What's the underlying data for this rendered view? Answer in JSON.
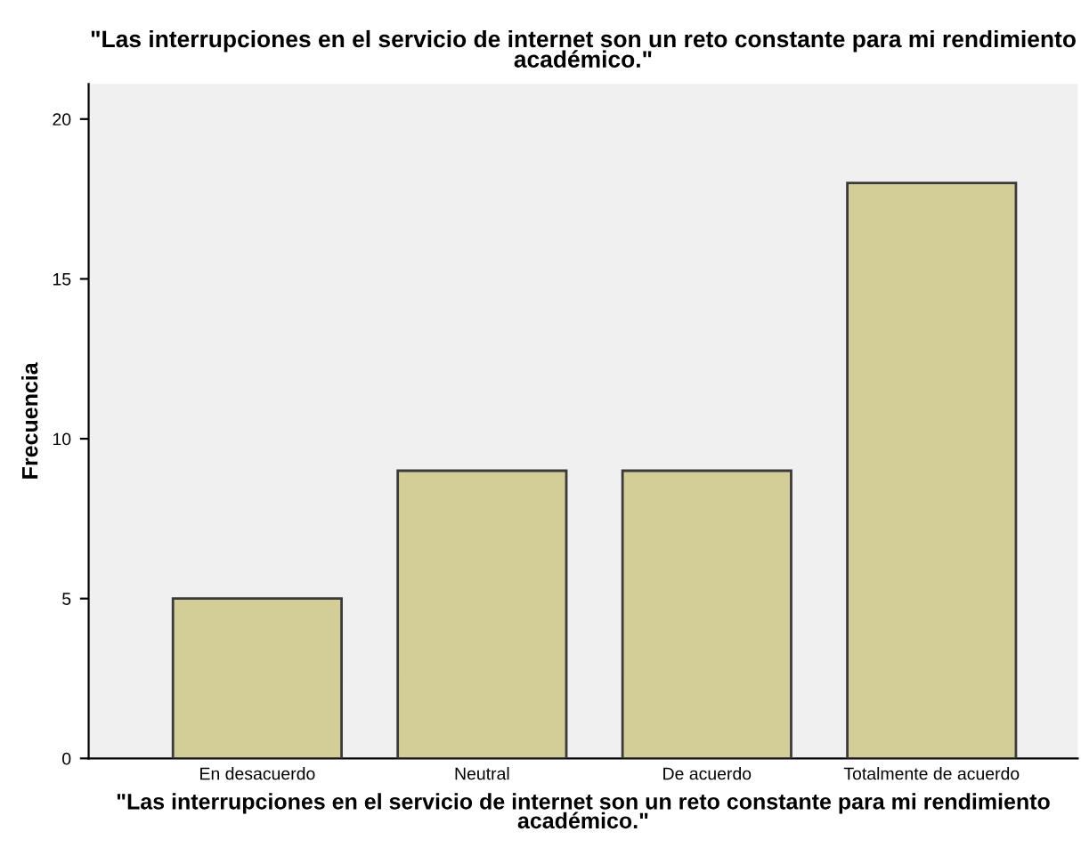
{
  "chart_data": {
    "type": "bar",
    "title": "\"Las interrupciones en el servicio de internet son un reto constante para mi rendimiento académico.\"",
    "xlabel": "\"Las interrupciones en el servicio de internet son un reto constante para mi rendimiento académico.\"",
    "ylabel": "Frecuencia",
    "categories": [
      "En desacuerdo",
      "Neutral",
      "De acuerdo",
      "Totalmente de acuerdo"
    ],
    "values": [
      5,
      9,
      9,
      18
    ],
    "color": "#d3ce98",
    "ylim": [
      0,
      21.1
    ],
    "yticks": [
      0,
      5,
      10,
      15,
      20
    ],
    "grid": false,
    "legend": false
  }
}
